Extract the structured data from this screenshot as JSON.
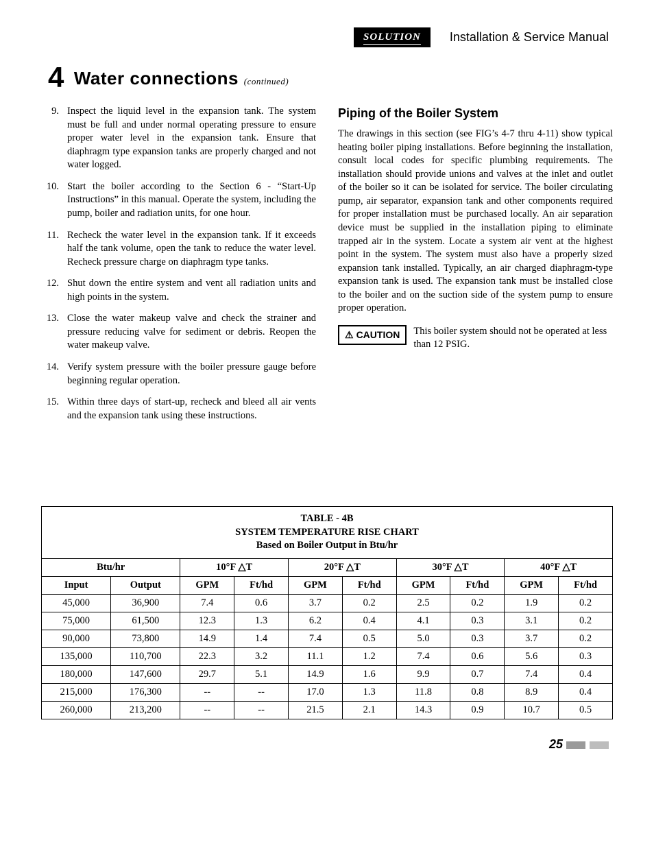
{
  "header": {
    "logo_main": "SOLUTION",
    "doc_type": "Installation & Service Manual"
  },
  "section": {
    "number": "4",
    "title": "Water connections",
    "continued": "(continued)"
  },
  "list_items": [
    {
      "n": "9.",
      "t": "Inspect the liquid level in the expansion tank.  The system must be full and under normal operating pressure to ensure proper water level in the expansion tank. Ensure that diaphragm type expansion tanks are properly charged and not water logged."
    },
    {
      "n": "10.",
      "t": "Start the boiler according to the Section 6 - “Start-Up Instructions” in this manual.  Operate the system, including the pump, boiler and radiation units, for one hour."
    },
    {
      "n": "11.",
      "t": "Recheck the water level in the expansion tank.  If it exceeds half the tank volume, open the tank to reduce the water level.  Recheck pressure charge on diaphragm type tanks."
    },
    {
      "n": "12.",
      "t": "Shut down the entire system and vent all radiation units and high points in the system."
    },
    {
      "n": "13.",
      "t": "Close the water makeup valve and check the strainer and pressure reducing valve for sediment or debris.  Reopen the water makeup valve."
    },
    {
      "n": "14.",
      "t": "Verify system pressure with the boiler pressure gauge before beginning regular operation."
    },
    {
      "n": "15.",
      "t": "Within three days of start-up, recheck and bleed all air vents and the expansion tank using these instructions."
    }
  ],
  "right": {
    "subhead": "Piping of the Boiler System",
    "para": "The drawings in this section (see FIG’s 4-7 thru 4-11) show typical heating boiler piping installations.  Before beginning the installation, consult local codes for specific plumbing requirements.  The installation should provide unions and valves at the inlet and outlet of the boiler so it can be isolated for service.  The boiler circulating pump, air separator, expansion tank and other components required for proper installation must be purchased locally.  An air separation device must be supplied in the installation piping to eliminate trapped air in the system.  Locate a system air vent at the highest point in the system.  The system must  also have a properly sized expansion tank installed.  Typically, an air charged diaphragm-type expansion tank is used.  The expansion tank must be installed close to the boiler and on the suction side of the system pump to ensure proper  operation.",
    "caution_label": "CAUTION",
    "caution_text": "This boiler system should not be operated at less than 12 PSIG."
  },
  "table": {
    "title1": "TABLE - 4B",
    "title2": "SYSTEM TEMPERATURE RISE CHART",
    "title3": "Based on Boiler Output in Btu/hr",
    "group_headers": [
      "Btu/hr",
      "10°F △T",
      "20°F △T",
      "30°F △T",
      "40°F △T"
    ],
    "sub_headers": [
      "Input",
      "Output",
      "GPM",
      "Ft/hd",
      "GPM",
      "Ft/hd",
      "GPM",
      "Ft/hd",
      "GPM",
      "Ft/hd"
    ],
    "rows": [
      [
        "45,000",
        "36,900",
        "7.4",
        "0.6",
        "3.7",
        "0.2",
        "2.5",
        "0.2",
        "1.9",
        "0.2"
      ],
      [
        "75,000",
        "61,500",
        "12.3",
        "1.3",
        "6.2",
        "0.4",
        "4.1",
        "0.3",
        "3.1",
        "0.2"
      ],
      [
        "90,000",
        "73,800",
        "14.9",
        "1.4",
        "7.4",
        "0.5",
        "5.0",
        "0.3",
        "3.7",
        "0.2"
      ],
      [
        "135,000",
        "110,700",
        "22.3",
        "3.2",
        "11.1",
        "1.2",
        "7.4",
        "0.6",
        "5.6",
        "0.3"
      ],
      [
        "180,000",
        "147,600",
        "29.7",
        "5.1",
        "14.9",
        "1.6",
        "9.9",
        "0.7",
        "7.4",
        "0.4"
      ],
      [
        "215,000",
        "176,300",
        "--",
        "--",
        "17.0",
        "1.3",
        "11.8",
        "0.8",
        "8.9",
        "0.4"
      ],
      [
        "260,000",
        "213,200",
        "--",
        "--",
        "21.5",
        "2.1",
        "14.3",
        "0.9",
        "10.7",
        "0.5"
      ]
    ]
  },
  "page_number": "25"
}
